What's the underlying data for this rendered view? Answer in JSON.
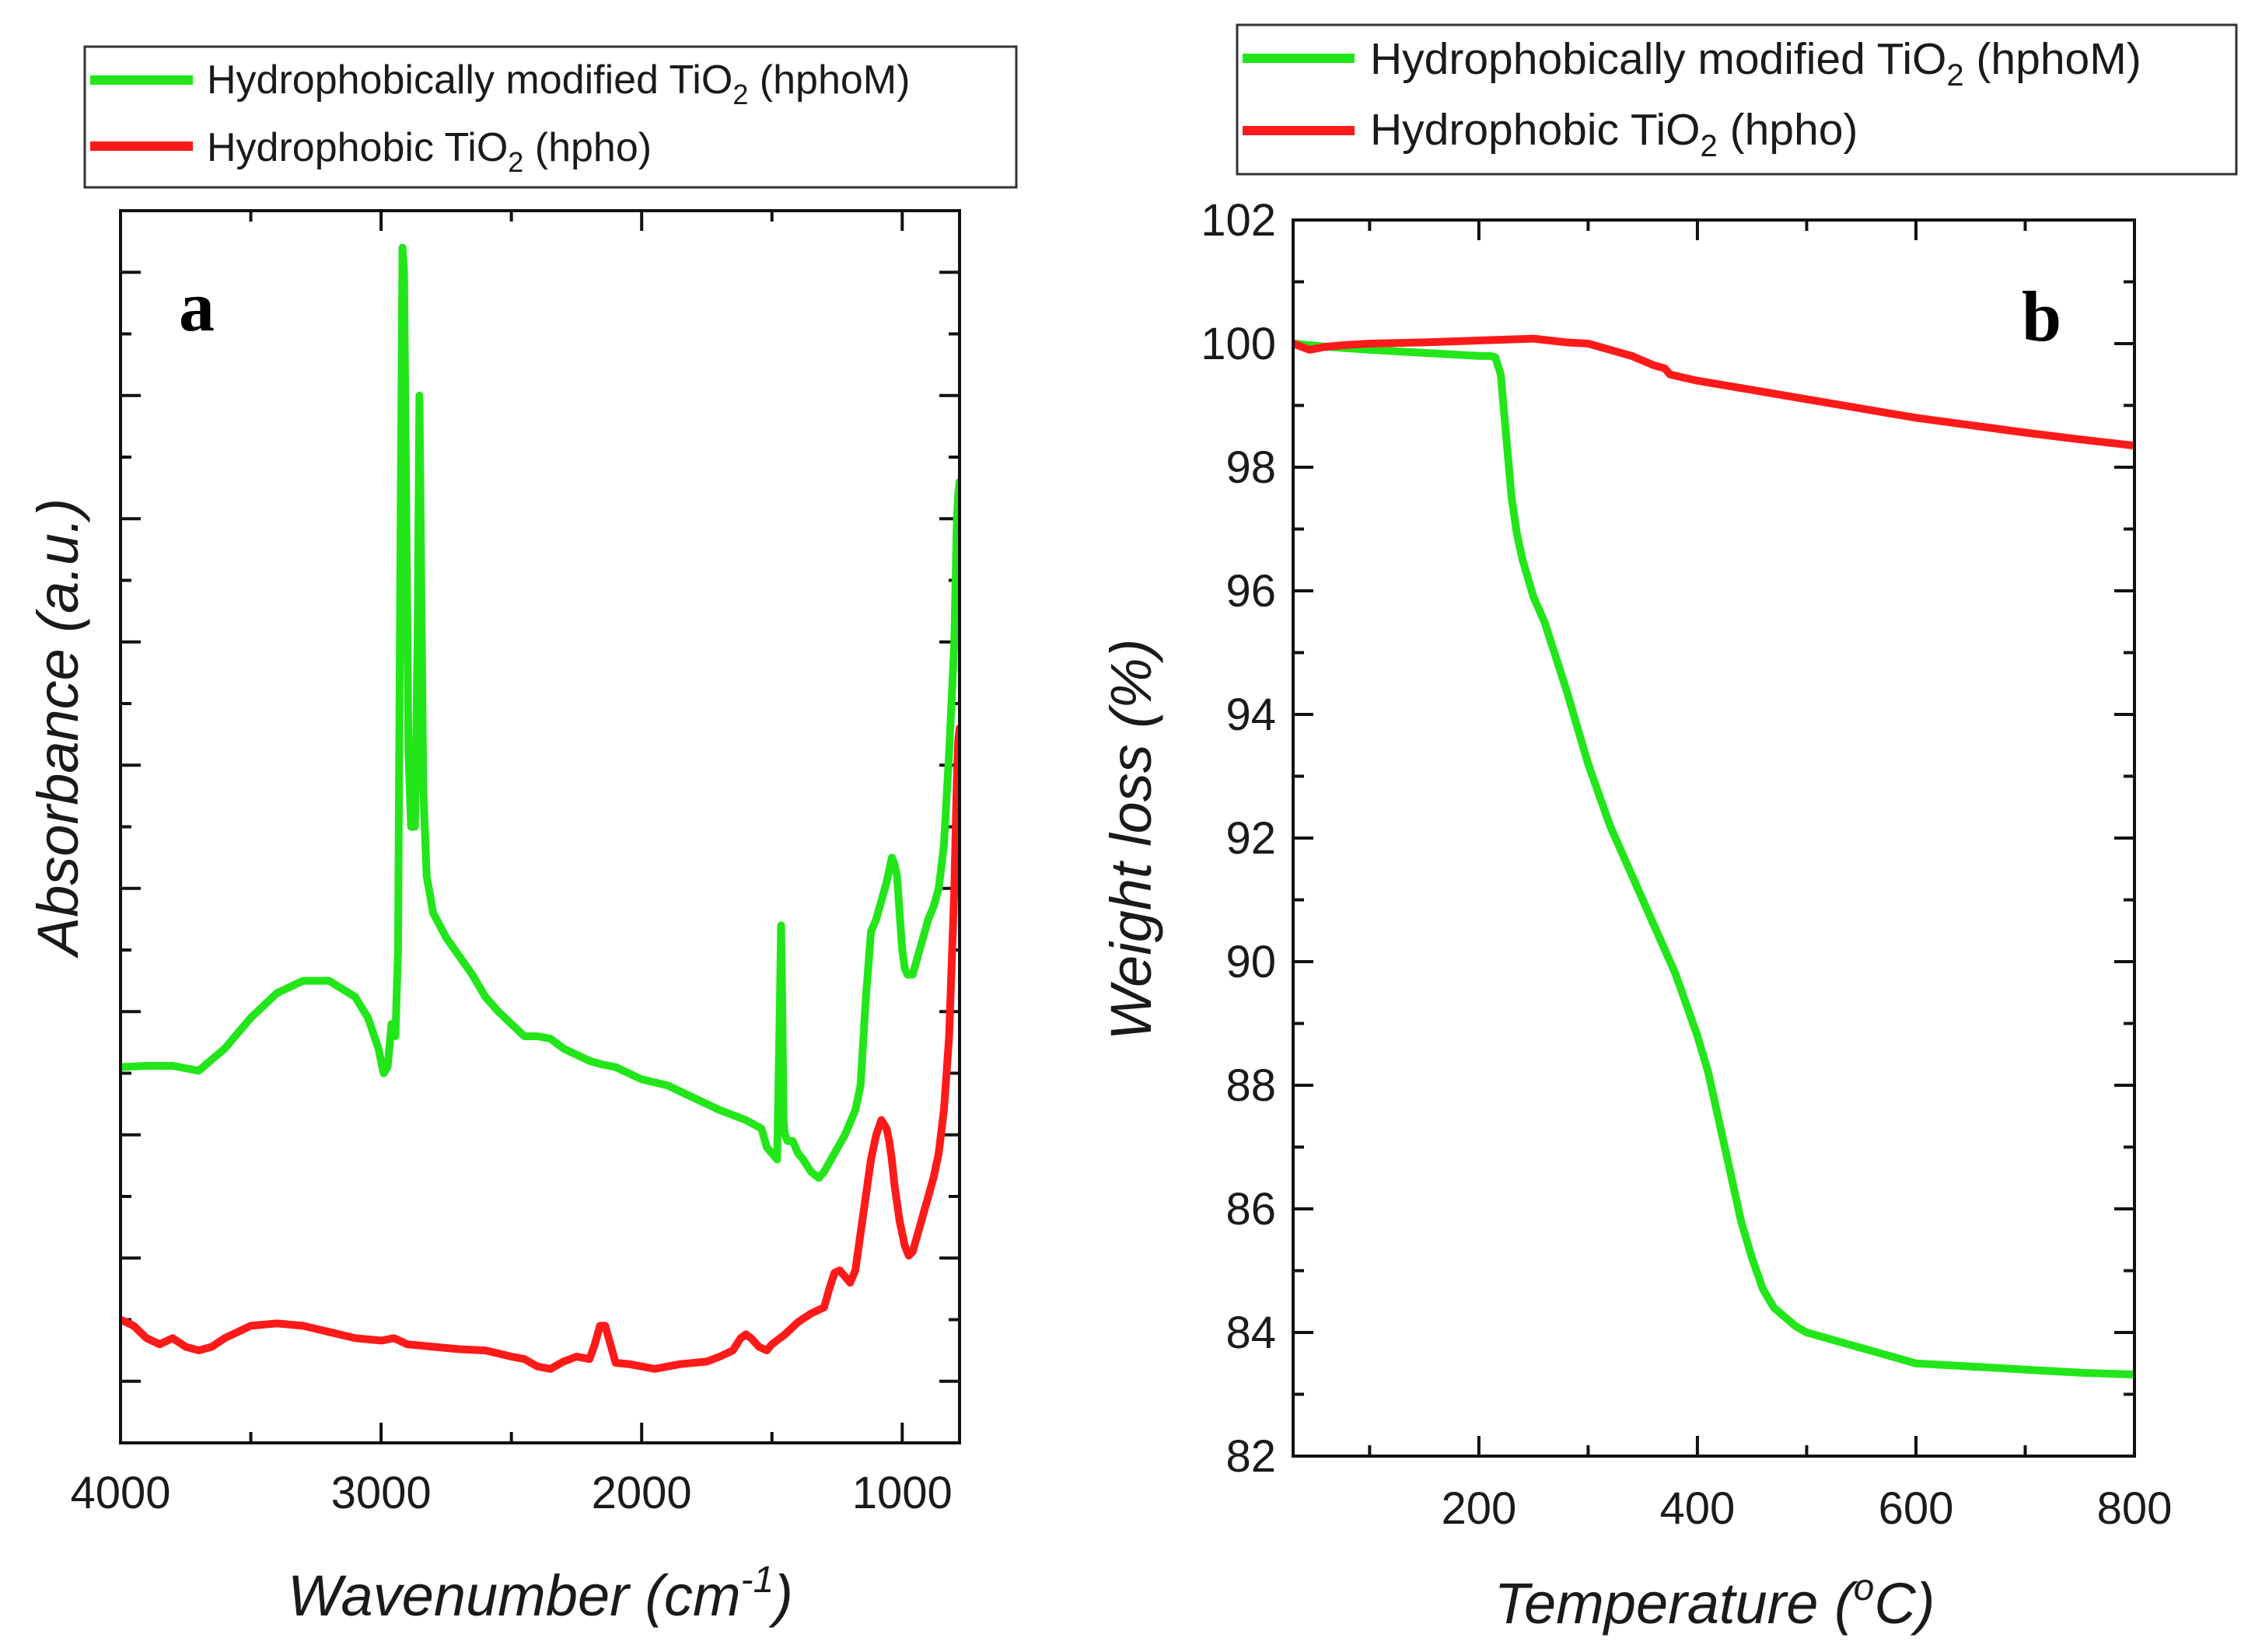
{
  "chart_data": [
    {
      "panel": "a",
      "type": "line",
      "title": "",
      "xlabel": "Wavenumber (cm",
      "xlabel_sup": "-1",
      "xlabel_end": ")",
      "ylabel": "Absorbance (a.u.)",
      "xlim": [
        4000,
        780
      ],
      "xticks": [
        4000,
        3000,
        2000,
        1000
      ],
      "ylim": [
        0,
        10
      ],
      "show_y_tick_labels": false,
      "grid": false,
      "legend_position": "top",
      "series": [
        {
          "name_pre": "Hydrophobically modified TiO",
          "name_sub": "2",
          "name_post": " (hphoM)",
          "color": "#22e61a",
          "x": [
            4000,
            3900,
            3800,
            3700,
            3600,
            3500,
            3400,
            3300,
            3200,
            3100,
            3050,
            3010,
            2990,
            2975,
            2960,
            2945,
            2935,
            2925,
            2918,
            2912,
            2905,
            2895,
            2885,
            2870,
            2860,
            2853,
            2846,
            2838,
            2825,
            2800,
            2750,
            2700,
            2650,
            2600,
            2550,
            2500,
            2450,
            2400,
            2350,
            2300,
            2250,
            2200,
            2150,
            2100,
            2000,
            1900,
            1800,
            1700,
            1600,
            1540,
            1520,
            1480,
            1470,
            1465,
            1460,
            1455,
            1450,
            1440,
            1420,
            1400,
            1380,
            1350,
            1320,
            1300,
            1260,
            1220,
            1180,
            1160,
            1140,
            1120,
            1100,
            1080,
            1060,
            1050,
            1040,
            1030,
            1020,
            1010,
            1000,
            990,
            980,
            960,
            940,
            920,
            900,
            880,
            860,
            840,
            820,
            800,
            790,
            785,
            780
          ],
          "y": [
            3.05,
            3.06,
            3.06,
            3.02,
            3.2,
            3.45,
            3.65,
            3.75,
            3.75,
            3.62,
            3.45,
            3.2,
            3.0,
            3.05,
            3.4,
            3.3,
            4.0,
            7.5,
            9.7,
            9.5,
            8.0,
            5.6,
            5.0,
            5.0,
            6.5,
            8.5,
            7.0,
            5.3,
            4.6,
            4.3,
            4.1,
            3.95,
            3.8,
            3.62,
            3.5,
            3.4,
            3.3,
            3.3,
            3.28,
            3.2,
            3.15,
            3.1,
            3.07,
            3.05,
            2.95,
            2.9,
            2.8,
            2.7,
            2.62,
            2.55,
            2.4,
            2.3,
            3.5,
            4.2,
            3.5,
            2.6,
            2.5,
            2.45,
            2.45,
            2.35,
            2.3,
            2.2,
            2.15,
            2.2,
            2.35,
            2.5,
            2.7,
            2.9,
            3.6,
            4.15,
            4.25,
            4.4,
            4.55,
            4.65,
            4.75,
            4.7,
            4.6,
            4.3,
            4.0,
            3.85,
            3.8,
            3.8,
            3.95,
            4.1,
            4.25,
            4.35,
            4.5,
            4.85,
            5.6,
            6.5,
            7.5,
            7.7,
            7.8
          ]
        },
        {
          "name_pre": "Hydrophobic TiO",
          "name_sub": "2",
          "name_post": " (hpho)",
          "color": "#ff1a1a",
          "x": [
            4000,
            3950,
            3900,
            3850,
            3800,
            3750,
            3700,
            3650,
            3600,
            3500,
            3400,
            3300,
            3200,
            3100,
            3000,
            2950,
            2900,
            2800,
            2700,
            2600,
            2500,
            2450,
            2400,
            2350,
            2300,
            2250,
            2200,
            2180,
            2160,
            2140,
            2120,
            2100,
            2050,
            2000,
            1950,
            1900,
            1850,
            1800,
            1750,
            1700,
            1650,
            1620,
            1600,
            1580,
            1550,
            1520,
            1500,
            1450,
            1400,
            1350,
            1300,
            1280,
            1260,
            1240,
            1220,
            1200,
            1180,
            1160,
            1140,
            1120,
            1100,
            1080,
            1060,
            1050,
            1040,
            1030,
            1010,
            990,
            975,
            960,
            940,
            920,
            900,
            880,
            860,
            840,
            820,
            800,
            790,
            785,
            780
          ],
          "y": [
            1.0,
            0.95,
            0.85,
            0.8,
            0.85,
            0.78,
            0.75,
            0.78,
            0.85,
            0.95,
            0.97,
            0.95,
            0.9,
            0.85,
            0.83,
            0.85,
            0.8,
            0.78,
            0.76,
            0.75,
            0.7,
            0.68,
            0.62,
            0.6,
            0.66,
            0.7,
            0.68,
            0.8,
            0.95,
            0.95,
            0.8,
            0.65,
            0.64,
            0.62,
            0.6,
            0.62,
            0.64,
            0.65,
            0.66,
            0.7,
            0.75,
            0.85,
            0.88,
            0.85,
            0.78,
            0.75,
            0.8,
            0.88,
            0.98,
            1.05,
            1.1,
            1.25,
            1.38,
            1.4,
            1.35,
            1.3,
            1.4,
            1.7,
            2.0,
            2.3,
            2.5,
            2.62,
            2.55,
            2.45,
            2.3,
            2.1,
            1.8,
            1.6,
            1.52,
            1.55,
            1.7,
            1.85,
            2.0,
            2.15,
            2.35,
            2.7,
            3.3,
            4.5,
            5.4,
            5.7,
            5.8
          ]
        }
      ]
    },
    {
      "panel": "b",
      "type": "line",
      "title": "",
      "xlabel": "Temperature (",
      "xlabel_sup": "o",
      "xlabel_end": "C)",
      "ylabel": "Weight loss (%)",
      "xlim": [
        30,
        800
      ],
      "ylim": [
        82,
        102
      ],
      "xticks": [
        200,
        400,
        600,
        800
      ],
      "yticks": [
        82,
        84,
        86,
        88,
        90,
        92,
        94,
        96,
        98,
        100,
        102
      ],
      "grid": false,
      "legend_position": "top",
      "series": [
        {
          "name_pre": "Hydrophobically modified TiO",
          "name_sub": "2",
          "name_post": " (hphoM)",
          "color": "#22e61a",
          "x": [
            30,
            60,
            100,
            150,
            200,
            210,
            215,
            220,
            225,
            230,
            235,
            240,
            250,
            260,
            280,
            300,
            320,
            340,
            360,
            380,
            400,
            410,
            420,
            430,
            440,
            450,
            460,
            470,
            480,
            490,
            500,
            520,
            540,
            560,
            580,
            600,
            650,
            700,
            750,
            800
          ],
          "y": [
            100.0,
            99.95,
            99.9,
            99.85,
            99.8,
            99.8,
            99.78,
            99.5,
            98.5,
            97.5,
            96.9,
            96.5,
            95.9,
            95.5,
            94.4,
            93.2,
            92.2,
            91.4,
            90.6,
            89.8,
            88.8,
            88.2,
            87.4,
            86.6,
            85.8,
            85.2,
            84.7,
            84.4,
            84.25,
            84.1,
            84.0,
            83.9,
            83.8,
            83.7,
            83.6,
            83.5,
            83.45,
            83.4,
            83.35,
            83.32
          ]
        },
        {
          "name_pre": "Hydrophobic TiO",
          "name_sub": "2",
          "name_post": " (hpho)",
          "color": "#ff1a1a",
          "x": [
            30,
            45,
            60,
            80,
            100,
            150,
            200,
            250,
            280,
            300,
            320,
            340,
            360,
            370,
            375,
            400,
            450,
            500,
            550,
            600,
            650,
            700,
            750,
            800
          ],
          "y": [
            100.0,
            99.9,
            99.95,
            99.98,
            100.0,
            100.02,
            100.05,
            100.08,
            100.02,
            100.0,
            99.9,
            99.8,
            99.65,
            99.6,
            99.5,
            99.4,
            99.25,
            99.1,
            98.95,
            98.8,
            98.68,
            98.56,
            98.45,
            98.35
          ]
        }
      ]
    }
  ]
}
